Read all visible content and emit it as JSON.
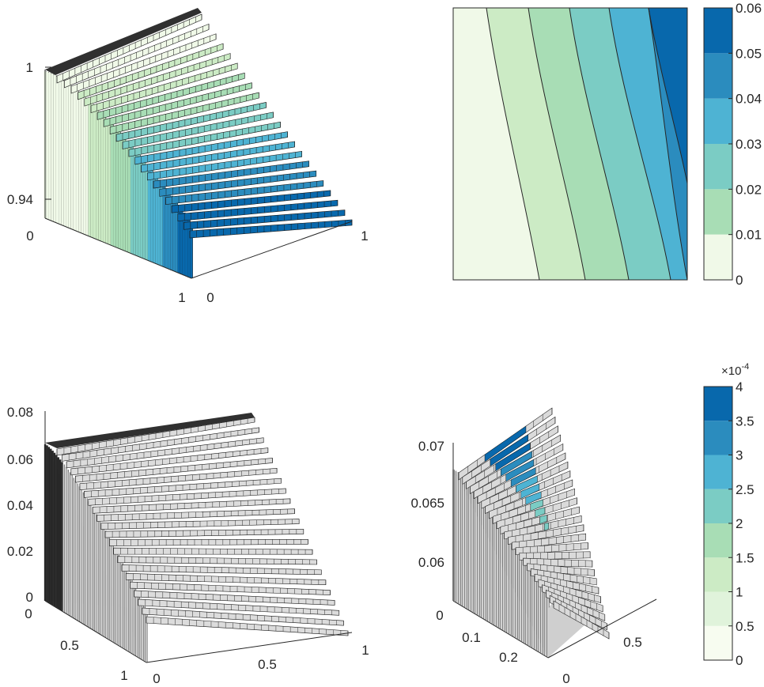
{
  "chart_data": [
    {
      "id": "p1",
      "type": "surface3d",
      "title": "",
      "xlabel": "",
      "ylabel": "",
      "zlabel": "",
      "x_ticks": [
        "0",
        "1"
      ],
      "y_ticks": [
        "1",
        "0"
      ],
      "z_ticks": [
        "1",
        "0.94"
      ],
      "corner_tick": "1",
      "zlim": [
        0.94,
        1.0
      ],
      "rows": 22,
      "colormap": "GnBu-7",
      "colors": [
        "#f0f9e8",
        "#ccebc5",
        "#a8ddb5",
        "#7bccc4",
        "#4eb3d3",
        "#2b8cbe",
        "#0868ac"
      ]
    },
    {
      "id": "p2",
      "type": "contour",
      "title": "",
      "xlabel": "",
      "ylabel": "",
      "levels": [
        0,
        0.01,
        0.02,
        0.03,
        0.04,
        0.05,
        0.06
      ],
      "colorbar_ticks": [
        "0",
        "0.01",
        "0.02",
        "0.03",
        "0.04",
        "0.05",
        "0.06"
      ],
      "colors": [
        "#f0f9e8",
        "#ccebc5",
        "#a8ddb5",
        "#7bccc4",
        "#4eb3d3",
        "#2b8cbe",
        "#0868ac"
      ]
    },
    {
      "id": "p3",
      "type": "surface3d",
      "title": "",
      "xlabel": "",
      "ylabel": "",
      "zlabel": "",
      "z_ticks": [
        "0.08",
        "0.06",
        "0.04",
        "0.02",
        "0"
      ],
      "y_ticks": [
        "0",
        "0.5",
        "1"
      ],
      "x_ticks": [
        "0",
        "0.5",
        "1"
      ],
      "zlim": [
        0,
        0.08
      ],
      "rows": 22,
      "face_color": "#d9d9d9"
    },
    {
      "id": "p4",
      "type": "surface3d",
      "title": "",
      "xlabel": "",
      "ylabel": "",
      "zlabel": "",
      "z_ticks": [
        "0.07",
        "0.065",
        "0.06"
      ],
      "y_ticks": [
        "0",
        "0.1",
        "0.2"
      ],
      "x_ticks": [
        "0",
        "0.5"
      ],
      "zlim": [
        0.0575,
        0.07
      ],
      "rows": 26,
      "face_color": "#d9d9d9",
      "colorbar_ticks": [
        "0",
        "0.5",
        "1",
        "1.5",
        "2",
        "2.5",
        "3",
        "3.5",
        "4"
      ],
      "colorbar_exponent_base": "×10",
      "colorbar_exponent": "-4",
      "colors": [
        "#f7fcf0",
        "#e0f3db",
        "#ccebc5",
        "#a8ddb5",
        "#7bccc4",
        "#4eb3d3",
        "#2b8cbe",
        "#0868ac"
      ]
    }
  ]
}
